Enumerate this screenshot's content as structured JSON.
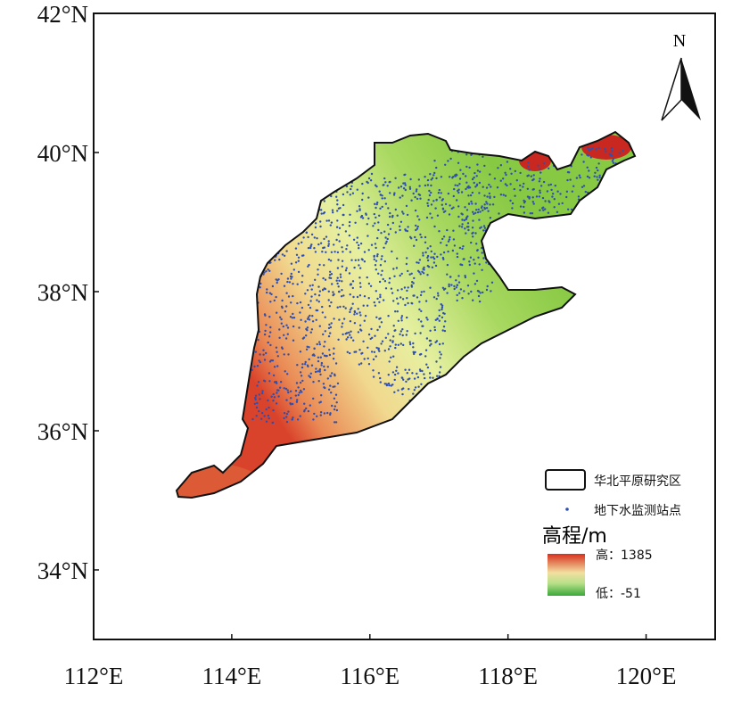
{
  "axes": {
    "xlim": [
      112,
      121
    ],
    "ylim": [
      33,
      42
    ],
    "xticks": [
      {
        "value": 112,
        "label": "112°E"
      },
      {
        "value": 114,
        "label": "114°E"
      },
      {
        "value": 116,
        "label": "116°E"
      },
      {
        "value": 118,
        "label": "118°E"
      },
      {
        "value": 120,
        "label": "120°E"
      }
    ],
    "yticks": [
      {
        "value": 34,
        "label": "34°N"
      },
      {
        "value": 36,
        "label": "36°N"
      },
      {
        "value": 38,
        "label": "38°N"
      },
      {
        "value": 40,
        "label": "40°N"
      },
      {
        "value": 42,
        "label": "42°N"
      }
    ]
  },
  "north_label": "N",
  "legend": {
    "boundary": "华北平原研究区",
    "stations": "地下水监测站点",
    "elevation_title": "高程/m",
    "high": "高：1385",
    "low": "低：-51"
  }
}
